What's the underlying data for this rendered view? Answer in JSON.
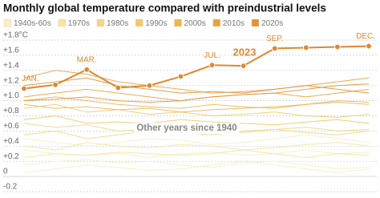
{
  "chart_data": {
    "type": "line",
    "title": "Monthly global temperature compared with preindustrial levels",
    "ylim": [
      -0.2,
      1.8
    ],
    "yticks": [
      {
        "value": 1.8,
        "label": "+1.8°C"
      },
      {
        "value": 1.6,
        "label": "+1.6"
      },
      {
        "value": 1.4,
        "label": "+1.4"
      },
      {
        "value": 1.2,
        "label": "+1.2"
      },
      {
        "value": 1.0,
        "label": "+1.0"
      },
      {
        "value": 0.8,
        "label": "+0.8"
      },
      {
        "value": 0.6,
        "label": "+0.6"
      },
      {
        "value": 0.4,
        "label": "+0.4"
      },
      {
        "value": 0.2,
        "label": "+0.2"
      },
      0,
      -0.2
    ],
    "grid": true,
    "series": [
      {
        "name": "1940s-60s",
        "color": "#f9eec4",
        "lines": [
          [
            0.35,
            0.3,
            0.28,
            0.3,
            0.25,
            0.3,
            0.32,
            0.28,
            0.3,
            0.35,
            0.3,
            0.32
          ],
          [
            0.15,
            0.2,
            0.22,
            0.18,
            0.2,
            0.15,
            0.12,
            0.18,
            0.2,
            0.15,
            0.1,
            0.12
          ],
          [
            0.5,
            0.45,
            0.4,
            0.45,
            0.5,
            0.48,
            0.42,
            0.45,
            0.5,
            0.55,
            0.5,
            0.45
          ],
          [
            0.05,
            0.1,
            0.15,
            0.12,
            0.08,
            0.1,
            0.15,
            0.2,
            0.15,
            0.1,
            0.05,
            0.1
          ]
        ]
      },
      {
        "name": "1970s",
        "color": "#f7e3a3",
        "lines": [
          [
            0.4,
            0.35,
            0.45,
            0.4,
            0.38,
            0.42,
            0.4,
            0.35,
            0.38,
            0.42,
            0.45,
            0.4
          ],
          [
            0.25,
            0.3,
            0.28,
            0.32,
            0.3,
            0.28,
            0.3,
            0.35,
            0.3,
            0.25,
            0.3,
            0.28
          ]
        ]
      },
      {
        "name": "1980s",
        "color": "#f4d687",
        "lines": [
          [
            0.55,
            0.6,
            0.5,
            0.55,
            0.6,
            0.58,
            0.55,
            0.6,
            0.62,
            0.58,
            0.55,
            0.6
          ],
          [
            0.7,
            0.65,
            0.68,
            0.6,
            0.62,
            0.65,
            0.6,
            0.58,
            0.62,
            0.65,
            0.6,
            0.62
          ]
        ]
      },
      {
        "name": "1990s",
        "color": "#f1c96b",
        "lines": [
          [
            0.75,
            0.8,
            0.7,
            0.72,
            0.7,
            0.75,
            0.72,
            0.7,
            0.68,
            0.72,
            0.75,
            0.7
          ],
          [
            0.9,
            0.95,
            0.85,
            0.88,
            0.82,
            0.85,
            0.8,
            0.82,
            0.85,
            0.8,
            0.78,
            0.82
          ]
        ]
      },
      {
        "name": "2000s",
        "color": "#edb654",
        "lines": [
          [
            0.95,
            0.9,
            0.92,
            0.88,
            0.9,
            0.85,
            0.88,
            0.9,
            0.92,
            0.95,
            0.98,
            0.95
          ],
          [
            1.0,
            1.05,
            1.0,
            0.95,
            0.92,
            0.9,
            0.95,
            0.92,
            0.9,
            0.95,
            1.0,
            0.98
          ]
        ]
      },
      {
        "name": "2010s",
        "color": "#e9a23f",
        "lines": [
          [
            1.3,
            1.4,
            1.35,
            1.25,
            1.2,
            1.15,
            1.1,
            1.12,
            1.15,
            1.2,
            1.25,
            1.3
          ],
          [
            1.05,
            1.1,
            1.15,
            1.1,
            1.05,
            1.0,
            1.05,
            1.08,
            1.1,
            1.05,
            1.1,
            1.15
          ]
        ]
      },
      {
        "name": "2020s",
        "color": "#e4913a",
        "lines": [
          [
            1.2,
            1.25,
            1.3,
            1.2,
            1.15,
            1.1,
            1.12,
            1.1,
            1.15,
            1.2,
            1.15,
            1.1
          ],
          [
            1.0,
            1.02,
            1.05,
            1.0,
            0.98,
            1.0,
            1.05,
            1.08,
            1.1,
            1.15,
            1.2,
            1.22
          ]
        ]
      },
      {
        "name": "2023",
        "color": "#e0872f",
        "highlight": true,
        "values": [
          1.16,
          1.21,
          1.41,
          1.17,
          1.2,
          1.32,
          1.47,
          1.46,
          1.69,
          1.7,
          1.71,
          1.72
        ],
        "point_labels": [
          "JAN.",
          null,
          "MAR.",
          null,
          null,
          null,
          "JUL.",
          null,
          "SEP.",
          null,
          null,
          "DEC."
        ]
      }
    ],
    "annotations": [
      {
        "text": "2023",
        "color": "#e0872f"
      },
      {
        "text": "Other years since 1940",
        "color": "#888"
      }
    ]
  }
}
